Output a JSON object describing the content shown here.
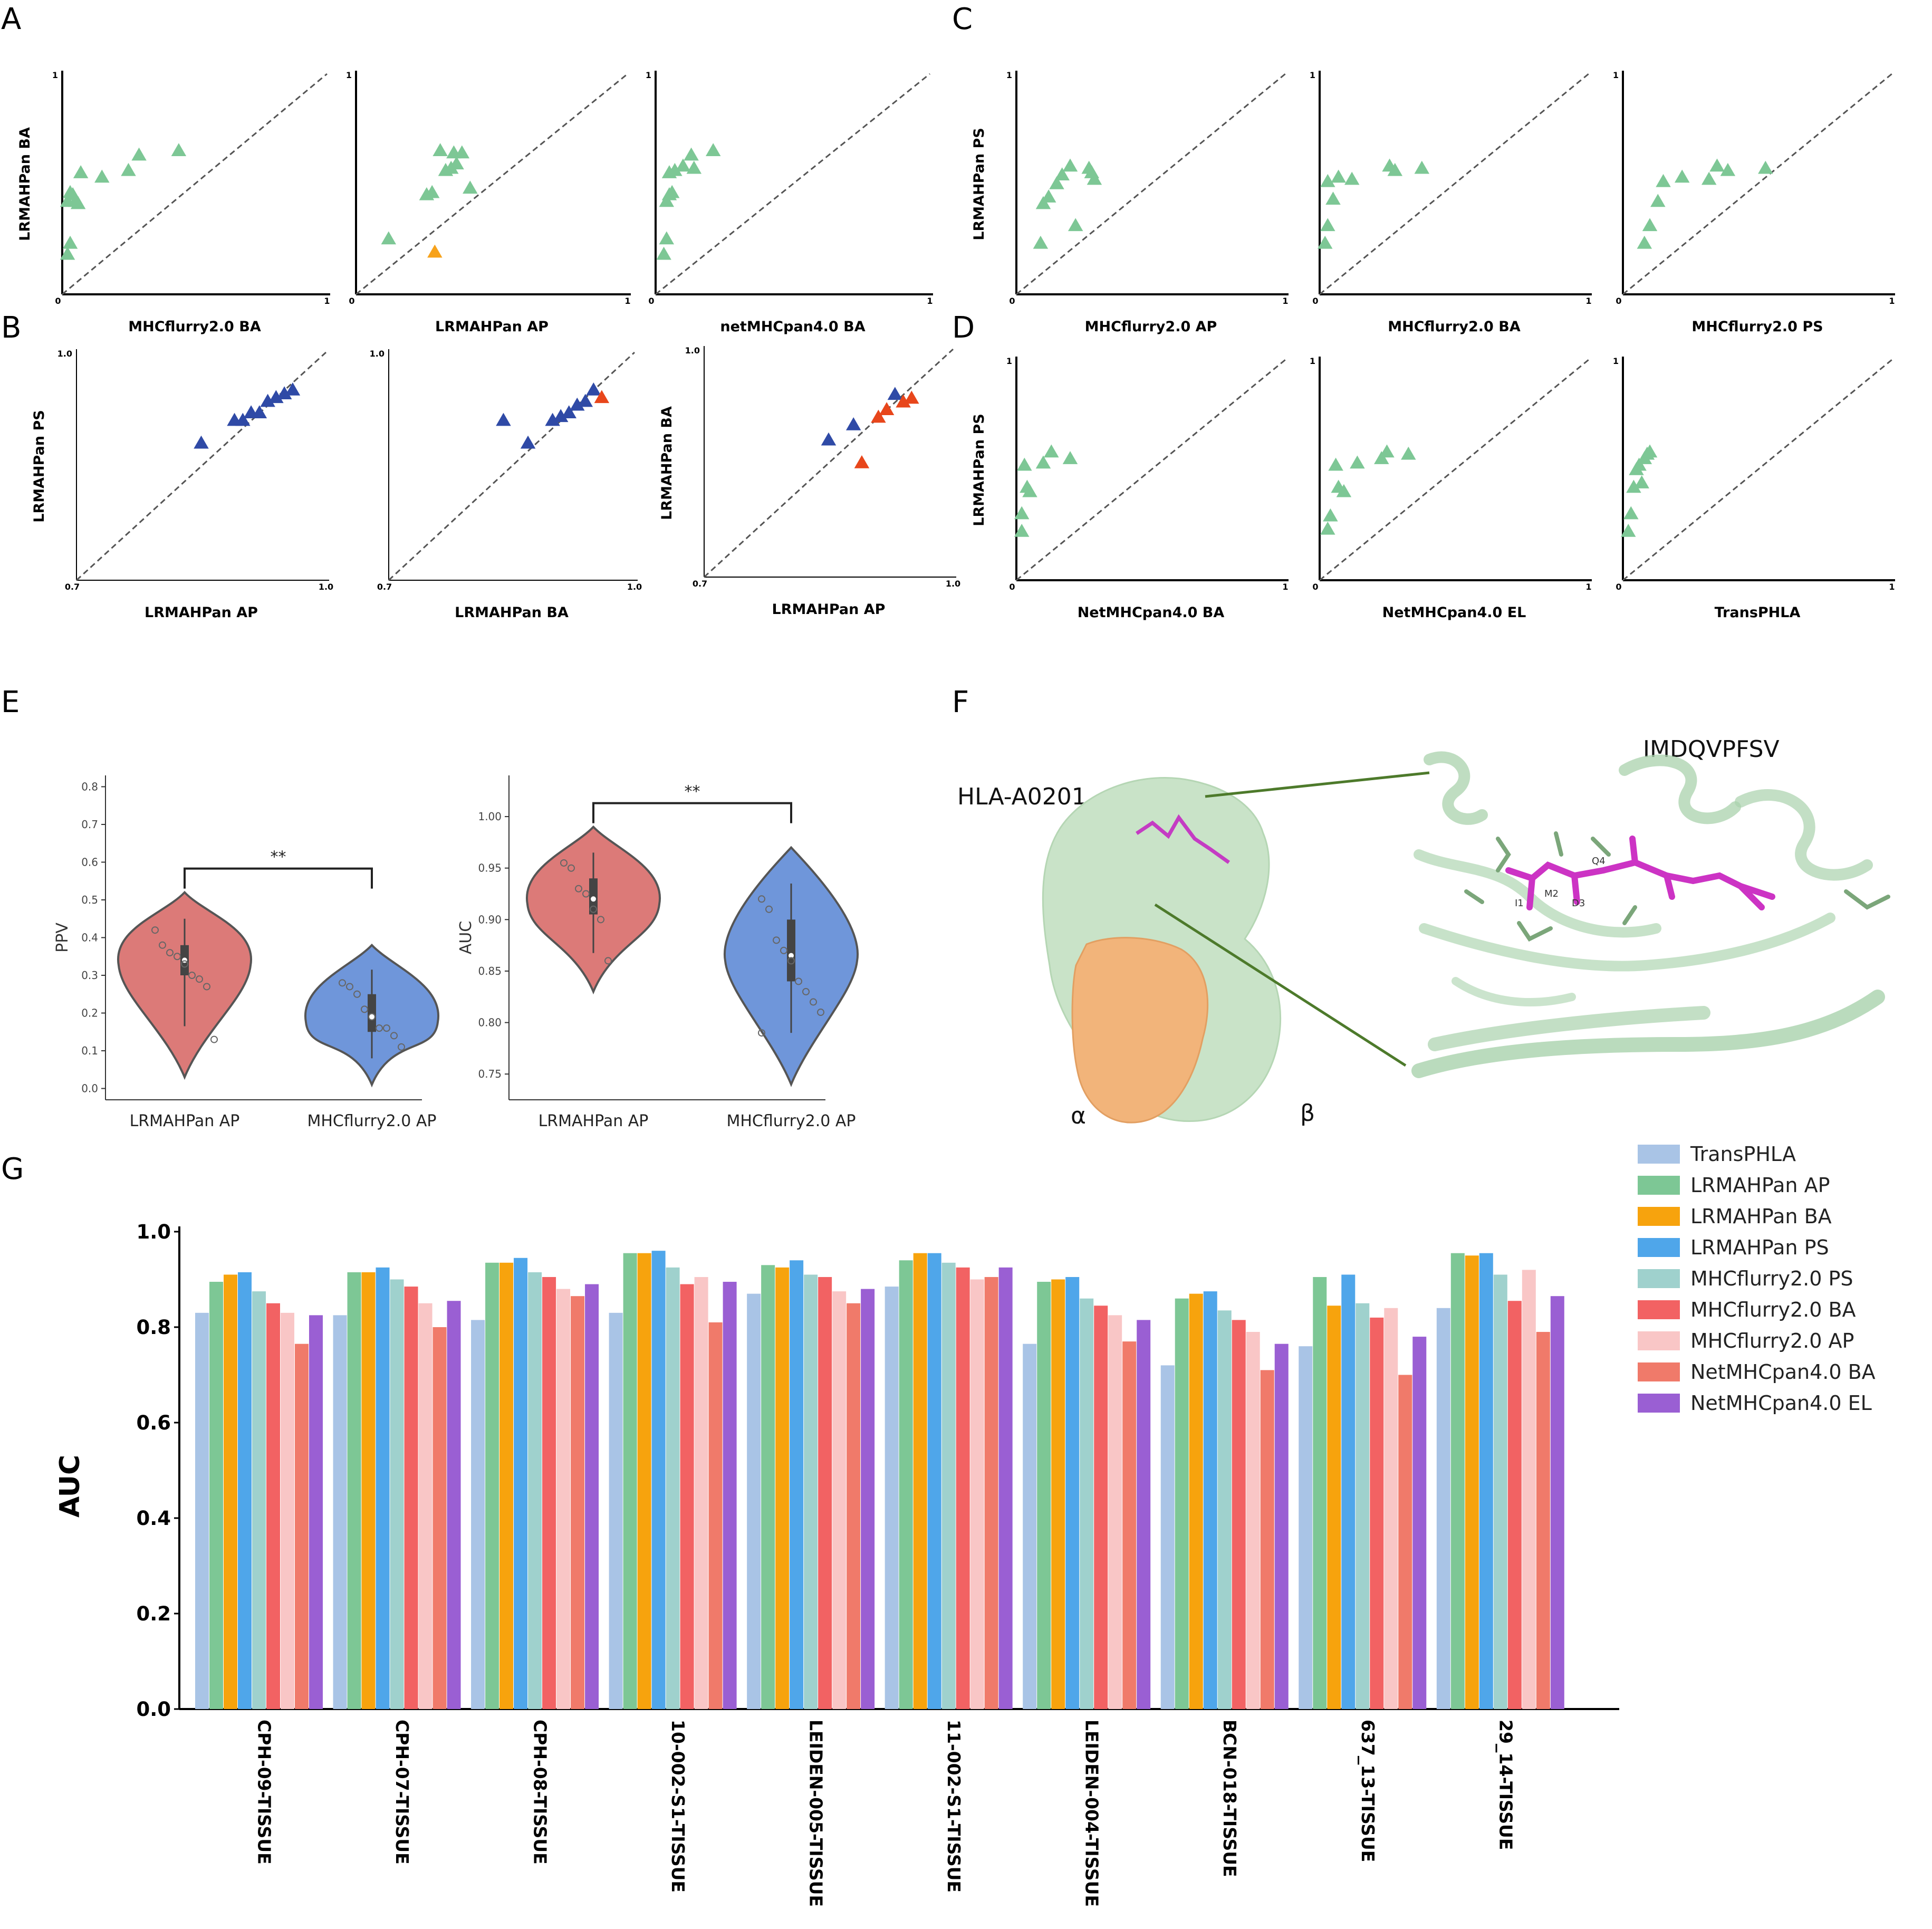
{
  "panels": {
    "A": "A",
    "B": "B",
    "C": "C",
    "D": "D",
    "E": "E",
    "F": "F",
    "G": "G"
  },
  "colors": {
    "green_marker": "#7dc795",
    "orange_marker": "#f7a21b",
    "blue_marker": "#2f4aa6",
    "red_marker": "#e8461b",
    "violin_red": "#dc7a78",
    "violin_blue": "#6f96da"
  },
  "chart_data": [
    {
      "id": "A1",
      "type": "scatter",
      "xlabel": "MHCflurry2.0 BA",
      "ylabel": "LRMAHPan BA",
      "xlim": [
        0,
        1
      ],
      "ylim": [
        0,
        1
      ],
      "ticks": [
        "0",
        "1"
      ],
      "series": [
        {
          "name": "green",
          "color": "#7dc795",
          "x": [
            0.02,
            0.03,
            0.04,
            0.05,
            0.06,
            0.07,
            0.02,
            0.03,
            0.15,
            0.25,
            0.29,
            0.44
          ],
          "y": [
            0.18,
            0.23,
            0.45,
            0.42,
            0.41,
            0.55,
            0.42,
            0.46,
            0.53,
            0.56,
            0.63,
            0.65
          ]
        }
      ]
    },
    {
      "id": "A2",
      "type": "scatter",
      "xlabel": "LRMAHPan AP",
      "ylabel": "",
      "xlim": [
        0,
        1
      ],
      "ylim": [
        0,
        1
      ],
      "ticks": [
        "0",
        "1"
      ],
      "series": [
        {
          "name": "green",
          "color": "#7dc795",
          "x": [
            0.12,
            0.26,
            0.28,
            0.31,
            0.33,
            0.35,
            0.36,
            0.37,
            0.39,
            0.42
          ],
          "y": [
            0.25,
            0.45,
            0.46,
            0.65,
            0.56,
            0.57,
            0.64,
            0.59,
            0.64,
            0.48
          ]
        },
        {
          "name": "orange",
          "color": "#f7a21b",
          "x": [
            0.29
          ],
          "y": [
            0.19
          ]
        }
      ]
    },
    {
      "id": "A3",
      "type": "scatter",
      "xlabel": "netMHCpan4.0 BA",
      "ylabel": "",
      "xlim": [
        0,
        1
      ],
      "ylim": [
        0,
        1
      ],
      "ticks": [
        "0",
        "1"
      ],
      "series": [
        {
          "name": "green",
          "color": "#7dc795",
          "x": [
            0.03,
            0.04,
            0.04,
            0.05,
            0.06,
            0.05,
            0.07,
            0.1,
            0.13,
            0.14,
            0.21
          ],
          "y": [
            0.18,
            0.25,
            0.42,
            0.45,
            0.46,
            0.55,
            0.56,
            0.58,
            0.63,
            0.57,
            0.65
          ]
        }
      ]
    },
    {
      "id": "B1",
      "type": "scatter",
      "xlabel": "LRMAHPan AP",
      "ylabel": "LRMAHPan PS",
      "xlim": [
        0.7,
        1.0
      ],
      "ylim": [
        0.7,
        1.0
      ],
      "ticks": [
        "0.7",
        "1.0"
      ],
      "series": [
        {
          "name": "blue",
          "color": "#2f4aa6",
          "x": [
            0.85,
            0.89,
            0.9,
            0.91,
            0.92,
            0.93,
            0.94,
            0.95,
            0.96
          ],
          "y": [
            0.88,
            0.91,
            0.91,
            0.92,
            0.92,
            0.935,
            0.94,
            0.945,
            0.95
          ]
        }
      ]
    },
    {
      "id": "B2",
      "type": "scatter",
      "xlabel": "LRMAHPan BA",
      "ylabel": "",
      "xlim": [
        0.7,
        1.0
      ],
      "ylim": [
        0.7,
        1.0
      ],
      "ticks": [
        "0.7",
        "1.0"
      ],
      "series": [
        {
          "name": "blue",
          "color": "#2f4aa6",
          "x": [
            0.84,
            0.87,
            0.9,
            0.91,
            0.92,
            0.93,
            0.94,
            0.95
          ],
          "y": [
            0.91,
            0.88,
            0.91,
            0.915,
            0.92,
            0.93,
            0.935,
            0.95
          ]
        },
        {
          "name": "red",
          "color": "#e8461b",
          "x": [
            0.96
          ],
          "y": [
            0.94
          ]
        }
      ]
    },
    {
      "id": "B3",
      "type": "scatter",
      "xlabel": "LRMAHPan AP",
      "ylabel": "LRMAHPan BA",
      "xlim": [
        0.7,
        1.0
      ],
      "ylim": [
        0.7,
        1.0
      ],
      "ticks": [
        "0.7",
        "1.0"
      ],
      "series": [
        {
          "name": "blue",
          "color": "#2f4aa6",
          "x": [
            0.85,
            0.88,
            0.93
          ],
          "y": [
            0.88,
            0.9,
            0.94
          ]
        },
        {
          "name": "red",
          "color": "#e8461b",
          "x": [
            0.89,
            0.91,
            0.92,
            0.94,
            0.95
          ],
          "y": [
            0.85,
            0.91,
            0.92,
            0.93,
            0.935
          ]
        }
      ]
    },
    {
      "id": "C1",
      "type": "scatter",
      "xlabel": "MHCflurry2.0 AP",
      "ylabel": "LRMAHPan PS",
      "xlim": [
        0,
        1
      ],
      "ylim": [
        0,
        1
      ],
      "ticks": [
        "0",
        "1"
      ],
      "series": [
        {
          "name": "green",
          "color": "#7dc795",
          "x": [
            0.09,
            0.1,
            0.12,
            0.15,
            0.17,
            0.2,
            0.22,
            0.27,
            0.28,
            0.29
          ],
          "y": [
            0.23,
            0.41,
            0.44,
            0.5,
            0.54,
            0.58,
            0.31,
            0.57,
            0.55,
            0.52
          ]
        }
      ]
    },
    {
      "id": "C2",
      "type": "scatter",
      "xlabel": "MHCflurry2.0 BA",
      "ylabel": "",
      "xlim": [
        0,
        1
      ],
      "ylim": [
        0,
        1
      ],
      "ticks": [
        "0",
        "1"
      ],
      "series": [
        {
          "name": "green",
          "color": "#7dc795",
          "x": [
            0.02,
            0.03,
            0.03,
            0.05,
            0.07,
            0.12,
            0.26,
            0.28,
            0.38
          ],
          "y": [
            0.23,
            0.31,
            0.51,
            0.43,
            0.53,
            0.52,
            0.58,
            0.56,
            0.57
          ]
        }
      ]
    },
    {
      "id": "C3",
      "type": "scatter",
      "xlabel": "MHCflurry2.0 PS",
      "ylabel": "",
      "xlim": [
        0,
        1
      ],
      "ylim": [
        0,
        1
      ],
      "ticks": [
        "0",
        "1"
      ],
      "series": [
        {
          "name": "green",
          "color": "#7dc795",
          "x": [
            0.08,
            0.1,
            0.13,
            0.15,
            0.22,
            0.32,
            0.35,
            0.39,
            0.53
          ],
          "y": [
            0.23,
            0.31,
            0.42,
            0.51,
            0.53,
            0.52,
            0.58,
            0.56,
            0.57
          ]
        }
      ]
    },
    {
      "id": "D1",
      "type": "scatter",
      "xlabel": "NetMHCpan4.0 BA",
      "ylabel": "LRMAHPan PS",
      "xlim": [
        0,
        1
      ],
      "ylim": [
        0,
        1
      ],
      "ticks": [
        "0",
        "1"
      ],
      "series": [
        {
          "name": "green",
          "color": "#7dc795",
          "x": [
            0.02,
            0.02,
            0.03,
            0.04,
            0.05,
            0.1,
            0.13,
            0.2
          ],
          "y": [
            0.22,
            0.3,
            0.52,
            0.42,
            0.4,
            0.53,
            0.58,
            0.55
          ]
        }
      ]
    },
    {
      "id": "D2",
      "type": "scatter",
      "xlabel": "NetMHCpan4.0 EL",
      "ylabel": "",
      "xlim": [
        0,
        1
      ],
      "ylim": [
        0,
        1
      ],
      "ticks": [
        "0",
        "1"
      ],
      "series": [
        {
          "name": "green",
          "color": "#7dc795",
          "x": [
            0.03,
            0.04,
            0.06,
            0.07,
            0.09,
            0.14,
            0.23,
            0.25,
            0.33
          ],
          "y": [
            0.23,
            0.29,
            0.52,
            0.42,
            0.4,
            0.53,
            0.55,
            0.58,
            0.57
          ]
        }
      ]
    },
    {
      "id": "D3",
      "type": "scatter",
      "xlabel": "TransPHLA",
      "ylabel": "",
      "xlim": [
        0,
        1
      ],
      "ylim": [
        0,
        1
      ],
      "ticks": [
        "0",
        "1"
      ],
      "series": [
        {
          "name": "green",
          "color": "#7dc795",
          "x": [
            0.02,
            0.03,
            0.04,
            0.05,
            0.06,
            0.07,
            0.08,
            0.09,
            0.1
          ],
          "y": [
            0.22,
            0.3,
            0.42,
            0.5,
            0.52,
            0.44,
            0.55,
            0.57,
            0.58
          ]
        }
      ]
    },
    {
      "id": "E1",
      "type": "violin",
      "ylabel": "PPV",
      "ylim": [
        -0.03,
        0.83
      ],
      "yticks": [
        0.0,
        0.1,
        0.2,
        0.3,
        0.4,
        0.5,
        0.6,
        0.7,
        0.8
      ],
      "ytick_labels": [
        "0.0",
        "0.1",
        "0.2",
        "0.3",
        "0.4",
        "0.5",
        "0.6",
        "0.7",
        "0.8"
      ],
      "categories": [
        "LRMAHPan AP",
        "MHCflurry2.0 AP"
      ],
      "significance": "**",
      "series": [
        {
          "name": "LRMAHPan AP",
          "color": "#dc7a78",
          "median": 0.34,
          "q1": 0.3,
          "q3": 0.38,
          "min": 0.03,
          "max": 0.52,
          "points": [
            0.42,
            0.38,
            0.36,
            0.35,
            0.33,
            0.3,
            0.29,
            0.27,
            0.13
          ]
        },
        {
          "name": "MHCflurry2.0 AP",
          "color": "#6f96da",
          "median": 0.19,
          "q1": 0.15,
          "q3": 0.25,
          "min": 0.01,
          "max": 0.38,
          "points": [
            0.28,
            0.27,
            0.25,
            0.21,
            0.19,
            0.16,
            0.16,
            0.14,
            0.11
          ]
        }
      ]
    },
    {
      "id": "E2",
      "type": "violin",
      "ylabel": "AUC",
      "ylim": [
        0.725,
        1.04
      ],
      "yticks": [
        0.75,
        0.8,
        0.85,
        0.9,
        0.95,
        1.0
      ],
      "ytick_labels": [
        "0.75",
        "0.80",
        "0.85",
        "0.90",
        "0.95",
        "1.00"
      ],
      "categories": [
        "LRMAHPan AP",
        "MHCflurry2.0 AP"
      ],
      "significance": "**",
      "series": [
        {
          "name": "LRMAHPan AP",
          "color": "#dc7a78",
          "median": 0.92,
          "q1": 0.905,
          "q3": 0.94,
          "min": 0.83,
          "max": 0.99,
          "points": [
            0.955,
            0.95,
            0.93,
            0.925,
            0.91,
            0.9,
            0.86
          ]
        },
        {
          "name": "MHCflurry2.0 AP",
          "color": "#6f96da",
          "median": 0.865,
          "q1": 0.84,
          "q3": 0.9,
          "min": 0.74,
          "max": 0.97,
          "points": [
            0.92,
            0.91,
            0.88,
            0.87,
            0.86,
            0.84,
            0.83,
            0.82,
            0.81,
            0.79
          ]
        }
      ]
    },
    {
      "id": "G",
      "type": "bar",
      "title": "",
      "xlabel": "",
      "ylabel": "AUC",
      "ylim": [
        0,
        1.0
      ],
      "yticks": [
        0.0,
        0.2,
        0.4,
        0.6,
        0.8,
        1.0
      ],
      "ytick_labels": [
        "0.0",
        "0.2",
        "0.4",
        "0.6",
        "0.8",
        "1.0"
      ],
      "categories": [
        "CPH-09-TISSUE",
        "CPH-07-TISSUE",
        "CPH-08-TISSUE",
        "10-002-S1-TISSUE",
        "LEIDEN-005-TISSUE",
        "11-002-S1-TISSUE",
        "LEIDEN-004-TISSUE",
        "BCN-018-TISSUE",
        "637_13-TISSUE",
        "29_14-TISSUE"
      ],
      "series": [
        {
          "name": "TransPHLA",
          "color": "#a9c4e6",
          "values": [
            0.83,
            0.825,
            0.815,
            0.83,
            0.87,
            0.885,
            0.765,
            0.72,
            0.76,
            0.84
          ]
        },
        {
          "name": "LRMAHPan AP",
          "color": "#7dc795",
          "values": [
            0.895,
            0.915,
            0.935,
            0.955,
            0.93,
            0.94,
            0.895,
            0.86,
            0.905,
            0.955
          ]
        },
        {
          "name": "LRMAHPan BA",
          "color": "#f7a30d",
          "values": [
            0.91,
            0.915,
            0.935,
            0.955,
            0.925,
            0.955,
            0.9,
            0.87,
            0.845,
            0.95
          ]
        },
        {
          "name": "LRMAHPan PS",
          "color": "#4fa6ea",
          "values": [
            0.915,
            0.925,
            0.945,
            0.96,
            0.94,
            0.955,
            0.905,
            0.875,
            0.91,
            0.955
          ]
        },
        {
          "name": "MHCflurry2.0 PS",
          "color": "#9fd1cd",
          "values": [
            0.875,
            0.9,
            0.915,
            0.925,
            0.91,
            0.935,
            0.86,
            0.835,
            0.85,
            0.91
          ]
        },
        {
          "name": "MHCflurry2.0 BA",
          "color": "#f26263",
          "values": [
            0.85,
            0.885,
            0.905,
            0.89,
            0.905,
            0.925,
            0.845,
            0.815,
            0.82,
            0.855
          ]
        },
        {
          "name": "MHCflurry2.0 AP",
          "color": "#f9c6c6",
          "values": [
            0.83,
            0.85,
            0.88,
            0.905,
            0.875,
            0.9,
            0.825,
            0.79,
            0.84,
            0.92
          ]
        },
        {
          "name": "NetMHCpan4.0 BA",
          "color": "#f07a6a",
          "values": [
            0.765,
            0.8,
            0.865,
            0.81,
            0.85,
            0.905,
            0.77,
            0.71,
            0.7,
            0.79
          ]
        },
        {
          "name": "NetMHCpan4.0 EL",
          "color": "#9a5fd3",
          "values": [
            0.825,
            0.855,
            0.89,
            0.895,
            0.88,
            0.925,
            0.815,
            0.765,
            0.78,
            0.865
          ]
        }
      ]
    }
  ],
  "structure": {
    "hla_label": "HLA-A0201",
    "peptide_label": "IMDQVPFSV",
    "alpha_label": "α",
    "beta_label": "β",
    "residue_labels": [
      "I1",
      "M2",
      "D3",
      "Q4"
    ]
  }
}
